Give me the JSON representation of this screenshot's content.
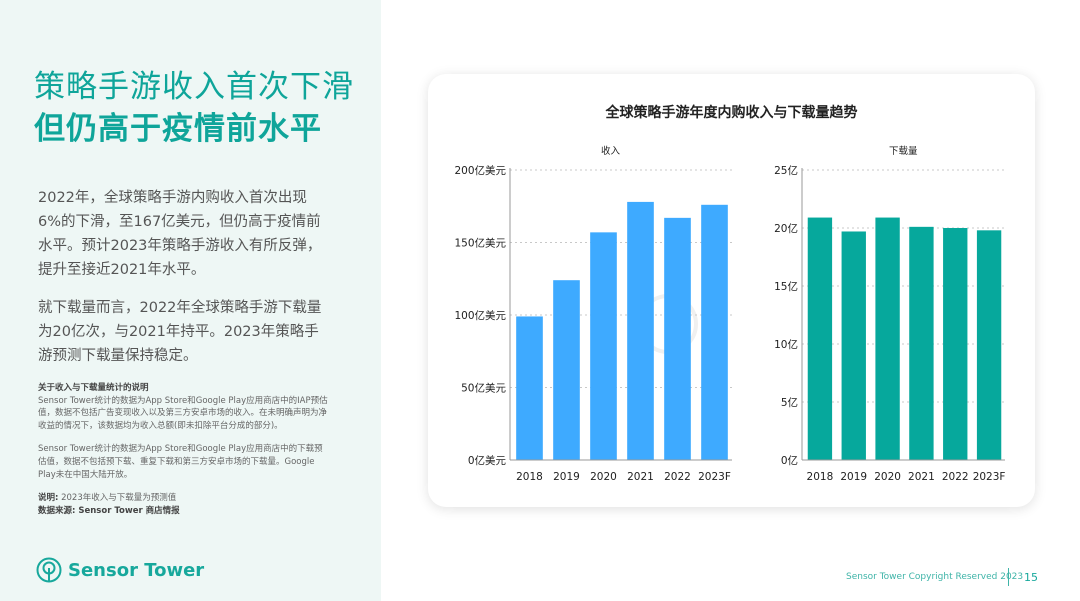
{
  "left": {
    "title_line1": "策略手游收入首次下滑",
    "title_line2": "但仍高于疫情前水平",
    "para1": "2022年，全球策略手游内购收入首次出现6%的下滑，至167亿美元，但仍高于疫情前水平。预计2023年策略手游收入有所反弹，提升至接近2021年水平。",
    "para2": "就下载量而言，2022年全球策略手游下载量为20亿次，与2021年持平。2023年策略手游预测下载量保持稳定。",
    "notes_heading": "关于收入与下载量统计的说明",
    "notes_1": "Sensor Tower统计的数据为App Store和Google Play应用商店中的IAP预估值，数据不包括广告变现收入以及第三方安卓市场的收入。在未明确声明为净收益的情况下，该数据均为收入总额(即未扣除平台分成的部分)。",
    "notes_2": "Sensor Tower统计的数据为App Store和Google Play应用商店中的下载预估值，数据不包括预下载、重复下载和第三方安卓市场的下载量。Google Play未在中国大陆开放。",
    "note_label": "说明:",
    "note_text": "2023年收入与下载量为预测值",
    "source": "数据来源: Sensor Tower 商店情报",
    "logo_text": "Sensor Tower"
  },
  "footer": {
    "copyright": "Sensor Tower Copyright Reserved 2023",
    "page": "15"
  },
  "colors": {
    "accent": "#0fa59a",
    "revenue_bar": "#3eaaff",
    "download_bar": "#06a89c"
  },
  "chart_data": [
    {
      "type": "bar",
      "title": "全球策略手游年度内购收入与下载量趋势",
      "subtitle": "收入",
      "categories": [
        "2018",
        "2019",
        "2020",
        "2021",
        "2022",
        "2023F"
      ],
      "values": [
        99,
        124,
        157,
        178,
        167,
        176
      ],
      "unit": "亿美元",
      "ylim": [
        0,
        200
      ],
      "yticks": [
        0,
        50,
        100,
        150,
        200
      ],
      "ytick_labels": [
        "0亿美元",
        "50亿美元",
        "100亿美元",
        "150亿美元",
        "200亿美元"
      ],
      "grid": true,
      "color": "#3eaaff"
    },
    {
      "type": "bar",
      "subtitle": "下载量",
      "categories": [
        "2018",
        "2019",
        "2020",
        "2021",
        "2022",
        "2023F"
      ],
      "values": [
        20.9,
        19.7,
        20.9,
        20.1,
        20.0,
        19.8
      ],
      "unit": "亿",
      "ylim": [
        0,
        25
      ],
      "yticks": [
        0,
        5,
        10,
        15,
        20,
        25
      ],
      "ytick_labels": [
        "0亿",
        "5亿",
        "10亿",
        "15亿",
        "20亿",
        "25亿"
      ],
      "grid": true,
      "color": "#06a89c"
    }
  ]
}
